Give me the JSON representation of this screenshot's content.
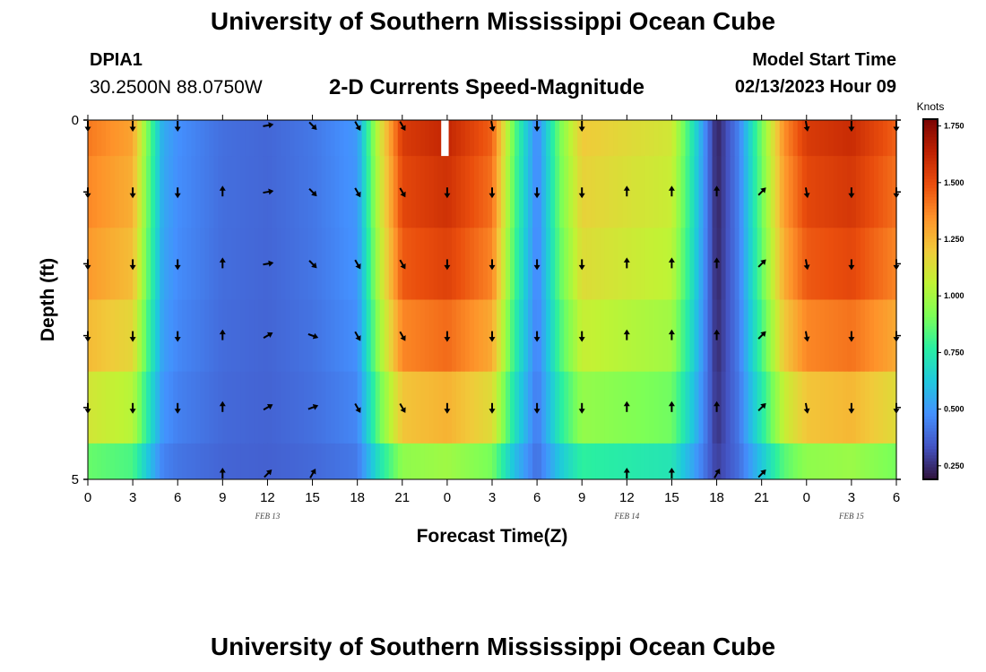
{
  "header": {
    "title": "University of Southern Mississippi Ocean Cube",
    "station": "DPIA1",
    "coords": "30.2500N  88.0750W",
    "subtitle": "2-D Currents Speed-Magnitude",
    "model_start_label": "Model Start Time",
    "model_start_value": "02/13/2023 Hour 09",
    "footer_title": "University of Southern Mississippi Ocean Cube"
  },
  "chart_data": {
    "type": "heatmap",
    "title": "2-D Currents Speed-Magnitude",
    "xlabel": "Forecast Time(Z)",
    "ylabel": "Depth (ft)",
    "x_tick_labels": [
      "0",
      "3",
      "6",
      "9",
      "12",
      "15",
      "18",
      "21",
      "0",
      "3",
      "6",
      "9",
      "12",
      "15",
      "18",
      "21",
      "0",
      "3",
      "6"
    ],
    "x_hours": [
      0,
      3,
      6,
      9,
      12,
      15,
      18,
      21,
      24,
      27,
      30,
      33,
      36,
      39,
      42,
      45,
      48,
      51,
      54
    ],
    "date_labels": [
      {
        "text": "FEB 13",
        "hour": 12
      },
      {
        "text": "FEB 14",
        "hour": 36
      },
      {
        "text": "FEB 15",
        "hour": 51
      }
    ],
    "y_tick_labels": [
      "0",
      "5"
    ],
    "ylim": [
      0,
      5
    ],
    "depths_ft": [
      0,
      1,
      2,
      3,
      4,
      5
    ],
    "colorbar": {
      "title": "Knots",
      "tick_labels": [
        "1.750",
        "1.500",
        "1.250",
        "1.000",
        "0.750",
        "0.500",
        "0.250"
      ],
      "tick_values": [
        1.75,
        1.5,
        1.25,
        1.0,
        0.75,
        0.5,
        0.25
      ],
      "range": [
        0.19,
        1.78
      ],
      "colors": [
        "#30123b",
        "#4454c4",
        "#4490fe",
        "#1fc8de",
        "#29efa2",
        "#7dff56",
        "#c1f334",
        "#f1ca3a",
        "#fe922a",
        "#ea4e0d",
        "#be2102",
        "#7a0403"
      ]
    },
    "speed_profile": {
      "hours": [
        0,
        3,
        4,
        5,
        6,
        9,
        12,
        15,
        18,
        19.5,
        21,
        24,
        27,
        28.5,
        30,
        31.5,
        33,
        36,
        39,
        40.5,
        42,
        43.5,
        45,
        46.5,
        48,
        51,
        54
      ],
      "base_knots": [
        1.4,
        1.3,
        0.9,
        0.55,
        0.48,
        0.4,
        0.38,
        0.42,
        0.5,
        1.1,
        1.55,
        1.62,
        1.45,
        0.85,
        0.45,
        0.9,
        1.2,
        1.15,
        1.1,
        0.7,
        0.22,
        0.45,
        0.9,
        1.35,
        1.55,
        1.6,
        1.45
      ]
    },
    "depth_factors": [
      1.0,
      0.97,
      0.93,
      0.85,
      0.72,
      0.5
    ],
    "arrows": {
      "rows": [
        {
          "depth": 0,
          "dirs": [
            180,
            180,
            180,
            null,
            80,
            135,
            150,
            150,
            null,
            170,
            180,
            180,
            null,
            null,
            null,
            null,
            170,
            180,
            180
          ]
        },
        {
          "depth": 1,
          "dirs": [
            180,
            180,
            180,
            0,
            80,
            135,
            150,
            150,
            180,
            180,
            180,
            180,
            0,
            0,
            0,
            45,
            170,
            180,
            180
          ]
        },
        {
          "depth": 2,
          "dirs": [
            180,
            180,
            180,
            0,
            80,
            135,
            150,
            150,
            180,
            180,
            180,
            180,
            0,
            0,
            0,
            45,
            170,
            180,
            180
          ]
        },
        {
          "depth": 3,
          "dirs": [
            180,
            180,
            180,
            0,
            60,
            110,
            150,
            150,
            180,
            180,
            180,
            180,
            0,
            0,
            0,
            45,
            170,
            180,
            180
          ]
        },
        {
          "depth": 4,
          "dirs": [
            180,
            180,
            180,
            0,
            60,
            70,
            150,
            150,
            180,
            180,
            180,
            180,
            0,
            0,
            0,
            45,
            170,
            180,
            180
          ]
        },
        {
          "depth": 5,
          "dirs": [
            null,
            null,
            null,
            0,
            45,
            30,
            null,
            null,
            null,
            null,
            null,
            null,
            0,
            0,
            30,
            45,
            null,
            null,
            null
          ]
        }
      ]
    },
    "missing_data": [
      {
        "hour_start": 23.6,
        "hour_end": 24.1,
        "depth_start": 0,
        "depth_end": 0.5
      }
    ]
  }
}
